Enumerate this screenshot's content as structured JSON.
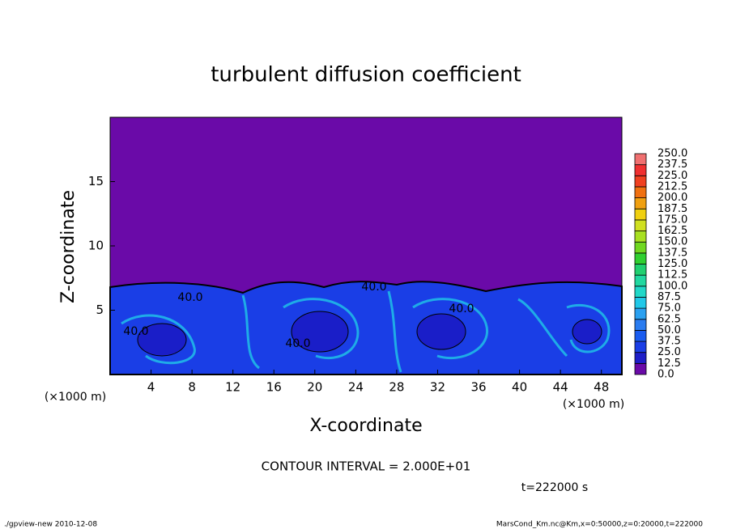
{
  "chart_data": {
    "type": "contour",
    "title": "turbulent diffusion coefficient",
    "x_label": "X-coordinate",
    "y_label": "Z-coordinate",
    "x_unit": "(×1000 m)",
    "y_unit": "(×1000 m)",
    "xlim": [
      0,
      50
    ],
    "xticks": [
      4,
      8,
      12,
      16,
      20,
      24,
      28,
      32,
      36,
      40,
      44,
      48
    ],
    "ylim": [
      0,
      20
    ],
    "yticks": [
      5,
      10,
      15
    ],
    "colorbar": {
      "levels": [
        {
          "value": 0,
          "label": "0.0"
        },
        {
          "value": 12.5,
          "label": "12.5"
        },
        {
          "value": 25,
          "label": "25.0"
        },
        {
          "value": 37.5,
          "label": "37.5"
        },
        {
          "value": 50,
          "label": "50.0"
        },
        {
          "value": 62.5,
          "label": "62.5"
        },
        {
          "value": 75,
          "label": "75.0"
        },
        {
          "value": 87.5,
          "label": "87.5"
        },
        {
          "value": 100,
          "label": "100.0"
        },
        {
          "value": 112.5,
          "label": "112.5"
        },
        {
          "value": 125,
          "label": "125.0"
        },
        {
          "value": 137.5,
          "label": "137.5"
        },
        {
          "value": 150,
          "label": "150.0"
        },
        {
          "value": 162.5,
          "label": "162.5"
        },
        {
          "value": 175,
          "label": "175.0"
        },
        {
          "value": 187.5,
          "label": "187.5"
        },
        {
          "value": 200,
          "label": "200.0"
        },
        {
          "value": 212.5,
          "label": "212.5"
        },
        {
          "value": 225,
          "label": "225.0"
        },
        {
          "value": 237.5,
          "label": "237.5"
        },
        {
          "value": 250,
          "label": "250.0"
        }
      ],
      "colors": [
        "#6a0aa8",
        "#1e1ec8",
        "#1a3ee6",
        "#1a5cf0",
        "#2a7cf0",
        "#2aa0f0",
        "#20c8e8",
        "#20d8c8",
        "#20d8a0",
        "#20d070",
        "#30d030",
        "#70d820",
        "#a8e020",
        "#d0e020",
        "#f0d010",
        "#f0a010",
        "#f07010",
        "#f04020",
        "#f03030",
        "#f07070"
      ]
    },
    "contour_labels": [
      {
        "value": 40,
        "label": "40.0"
      },
      {
        "value": 40,
        "label": "40.0"
      },
      {
        "value": 40,
        "label": "40.0"
      },
      {
        "value": 40,
        "label": "40.0"
      },
      {
        "value": 40,
        "label": "40.0"
      }
    ],
    "contour_interval": "CONTOUR INTERVAL = 2.000E+01",
    "time": "t=222000 s",
    "footer_left": "./gpview-new  2010-12-08",
    "footer_right": "MarsCond_Km.nc@Km,x=0:50000,z=0:20000,t=222000"
  }
}
